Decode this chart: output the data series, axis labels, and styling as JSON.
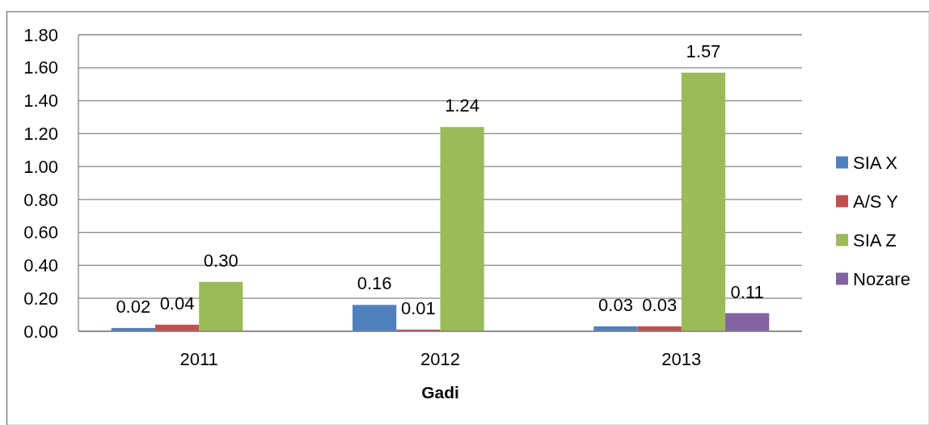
{
  "chart_data": {
    "type": "bar",
    "xlabel": "Gadi",
    "categories": [
      "2011",
      "2012",
      "2013"
    ],
    "series": [
      {
        "name": "SIA X",
        "color": "#4f81bd",
        "values": [
          0.02,
          0.16,
          0.03
        ],
        "value_labels": [
          "0.02",
          "0.16",
          "0.03"
        ]
      },
      {
        "name": "A/S Y",
        "color": "#c0504d",
        "values": [
          0.04,
          0.01,
          0.03
        ],
        "value_labels": [
          "0.04",
          "0.01",
          "0.03"
        ]
      },
      {
        "name": "SIA Z",
        "color": "#9bbb59",
        "values": [
          0.3,
          1.24,
          1.57
        ],
        "value_labels": [
          "0.30",
          "1.24",
          "1.57"
        ]
      },
      {
        "name": "Nozare",
        "color": "#8064a2",
        "values": [
          null,
          null,
          0.11
        ],
        "value_labels": [
          null,
          null,
          "0.11"
        ]
      }
    ],
    "ylim": [
      0,
      1.8
    ],
    "yticks": [
      {
        "value": 0,
        "label": "0.00"
      },
      {
        "value": 0.2,
        "label": "0.20"
      },
      {
        "value": 0.4,
        "label": "0.40"
      },
      {
        "value": 0.6,
        "label": "0.60"
      },
      {
        "value": 0.8,
        "label": "0.80"
      },
      {
        "value": 1.0,
        "label": "1.00"
      },
      {
        "value": 1.2,
        "label": "1.20"
      },
      {
        "value": 1.4,
        "label": "1.40"
      },
      {
        "value": 1.6,
        "label": "1.60"
      },
      {
        "value": 1.8,
        "label": "1.80"
      }
    ],
    "grid": "y",
    "legend": "right"
  }
}
